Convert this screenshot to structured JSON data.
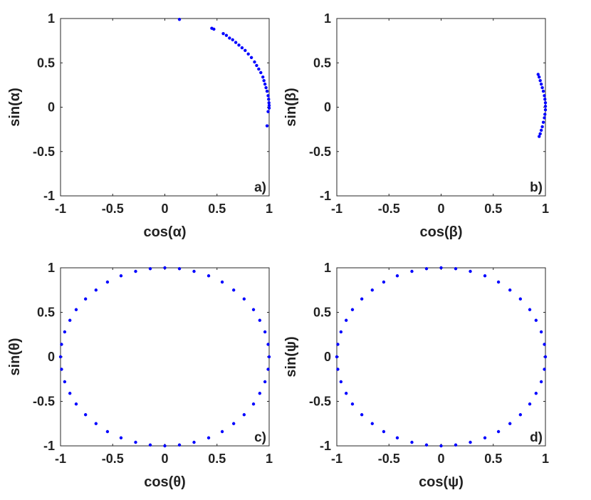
{
  "chart_data": [
    {
      "type": "scatter",
      "panel_label": "a)",
      "xlabel": "cos(α)",
      "ylabel": "sin(α)",
      "xlim": [
        -1,
        1
      ],
      "ylim": [
        -1,
        1
      ],
      "xticks": [
        "-1",
        "-0.5",
        "0",
        "0.5",
        "1"
      ],
      "yticks": [
        "-1",
        "-0.5",
        "0",
        "0.5",
        "1"
      ],
      "grid": false,
      "color": "#0000ff",
      "points": [
        [
          0.14,
          0.99
        ],
        [
          0.45,
          0.89
        ],
        [
          0.47,
          0.88
        ],
        [
          0.56,
          0.83
        ],
        [
          0.59,
          0.81
        ],
        [
          0.62,
          0.78
        ],
        [
          0.65,
          0.76
        ],
        [
          0.68,
          0.73
        ],
        [
          0.71,
          0.7
        ],
        [
          0.74,
          0.67
        ],
        [
          0.77,
          0.64
        ],
        [
          0.8,
          0.6
        ],
        [
          0.83,
          0.56
        ],
        [
          0.86,
          0.51
        ],
        [
          0.88,
          0.47
        ],
        [
          0.9,
          0.43
        ],
        [
          0.92,
          0.39
        ],
        [
          0.94,
          0.34
        ],
        [
          0.95,
          0.3
        ],
        [
          0.96,
          0.26
        ],
        [
          0.97,
          0.22
        ],
        [
          0.98,
          0.18
        ],
        [
          0.99,
          0.13
        ],
        [
          0.995,
          0.09
        ],
        [
          0.998,
          0.05
        ],
        [
          1.0,
          0.02
        ],
        [
          1.0,
          -0.01
        ],
        [
          0.99,
          -0.05
        ],
        [
          0.98,
          -0.21
        ]
      ]
    },
    {
      "type": "scatter",
      "panel_label": "b)",
      "xlabel": "cos(β)",
      "ylabel": "sin(β)",
      "xlim": [
        -1,
        1
      ],
      "ylim": [
        -1,
        1
      ],
      "xticks": [
        "-1",
        "-0.5",
        "0",
        "0.5",
        "1"
      ],
      "yticks": [
        "-1",
        "-0.5",
        "0",
        "0.5",
        "1"
      ],
      "grid": false,
      "color": "#0000ff",
      "points": [
        [
          0.93,
          0.37
        ],
        [
          0.94,
          0.34
        ],
        [
          0.95,
          0.3
        ],
        [
          0.96,
          0.26
        ],
        [
          0.97,
          0.22
        ],
        [
          0.98,
          0.18
        ],
        [
          0.99,
          0.13
        ],
        [
          0.995,
          0.09
        ],
        [
          1.0,
          0.05
        ],
        [
          1.0,
          0.01
        ],
        [
          1.0,
          -0.03
        ],
        [
          0.995,
          -0.08
        ],
        [
          0.99,
          -0.12
        ],
        [
          0.98,
          -0.17
        ],
        [
          0.97,
          -0.22
        ],
        [
          0.96,
          -0.26
        ],
        [
          0.95,
          -0.3
        ],
        [
          0.94,
          -0.33
        ]
      ]
    },
    {
      "type": "scatter",
      "panel_label": "c)",
      "xlabel": "cos(θ)",
      "ylabel": "sin(θ)",
      "xlim": [
        -1,
        1
      ],
      "ylim": [
        -1,
        1
      ],
      "xticks": [
        "-1",
        "-0.5",
        "0",
        "0.5",
        "1"
      ],
      "yticks": [
        "-1",
        "-0.5",
        "0",
        "0.5",
        "1"
      ],
      "grid": false,
      "color": "#0000ff",
      "points": [
        [
          1.0,
          0.0
        ],
        [
          0.99,
          0.14
        ],
        [
          0.96,
          0.28
        ],
        [
          0.91,
          0.41
        ],
        [
          0.85,
          0.53
        ],
        [
          0.76,
          0.65
        ],
        [
          0.66,
          0.75
        ],
        [
          0.55,
          0.84
        ],
        [
          0.42,
          0.91
        ],
        [
          0.28,
          0.96
        ],
        [
          0.14,
          0.99
        ],
        [
          0.0,
          1.0
        ],
        [
          -0.14,
          0.99
        ],
        [
          -0.28,
          0.96
        ],
        [
          -0.42,
          0.91
        ],
        [
          -0.55,
          0.84
        ],
        [
          -0.66,
          0.75
        ],
        [
          -0.76,
          0.65
        ],
        [
          -0.85,
          0.53
        ],
        [
          -0.91,
          0.41
        ],
        [
          -0.96,
          0.28
        ],
        [
          -0.99,
          0.14
        ],
        [
          -1.0,
          0.0
        ],
        [
          -0.99,
          -0.14
        ],
        [
          -0.96,
          -0.28
        ],
        [
          -0.91,
          -0.41
        ],
        [
          -0.85,
          -0.53
        ],
        [
          -0.76,
          -0.65
        ],
        [
          -0.66,
          -0.75
        ],
        [
          -0.55,
          -0.84
        ],
        [
          -0.42,
          -0.91
        ],
        [
          -0.28,
          -0.96
        ],
        [
          -0.14,
          -0.99
        ],
        [
          0.0,
          -1.0
        ],
        [
          0.14,
          -0.99
        ],
        [
          0.28,
          -0.96
        ],
        [
          0.42,
          -0.91
        ],
        [
          0.55,
          -0.84
        ],
        [
          0.66,
          -0.75
        ],
        [
          0.76,
          -0.65
        ],
        [
          0.85,
          -0.53
        ],
        [
          0.91,
          -0.41
        ],
        [
          0.96,
          -0.28
        ],
        [
          0.99,
          -0.14
        ]
      ]
    },
    {
      "type": "scatter",
      "panel_label": "d)",
      "xlabel": "cos(ψ)",
      "ylabel": "sin(ψ)",
      "xlim": [
        -1,
        1
      ],
      "ylim": [
        -1,
        1
      ],
      "xticks": [
        "-1",
        "-0.5",
        "0",
        "0.5",
        "1"
      ],
      "yticks": [
        "-1",
        "-0.5",
        "0",
        "0.5",
        "1"
      ],
      "grid": false,
      "color": "#0000ff",
      "points": [
        [
          1.0,
          0.0
        ],
        [
          0.99,
          0.14
        ],
        [
          0.96,
          0.28
        ],
        [
          0.91,
          0.41
        ],
        [
          0.85,
          0.53
        ],
        [
          0.76,
          0.65
        ],
        [
          0.66,
          0.75
        ],
        [
          0.55,
          0.84
        ],
        [
          0.42,
          0.91
        ],
        [
          0.28,
          0.96
        ],
        [
          0.14,
          0.99
        ],
        [
          0.0,
          1.0
        ],
        [
          -0.14,
          0.99
        ],
        [
          -0.28,
          0.96
        ],
        [
          -0.42,
          0.91
        ],
        [
          -0.55,
          0.84
        ],
        [
          -0.66,
          0.75
        ],
        [
          -0.76,
          0.65
        ],
        [
          -0.85,
          0.53
        ],
        [
          -0.91,
          0.41
        ],
        [
          -0.96,
          0.28
        ],
        [
          -0.99,
          0.14
        ],
        [
          -1.0,
          0.0
        ],
        [
          -0.99,
          -0.14
        ],
        [
          -0.96,
          -0.28
        ],
        [
          -0.91,
          -0.41
        ],
        [
          -0.85,
          -0.53
        ],
        [
          -0.76,
          -0.65
        ],
        [
          -0.66,
          -0.75
        ],
        [
          -0.55,
          -0.84
        ],
        [
          -0.42,
          -0.91
        ],
        [
          -0.28,
          -0.96
        ],
        [
          -0.14,
          -0.99
        ],
        [
          0.0,
          -1.0
        ],
        [
          0.14,
          -0.99
        ],
        [
          0.28,
          -0.96
        ],
        [
          0.42,
          -0.91
        ],
        [
          0.55,
          -0.84
        ],
        [
          0.66,
          -0.75
        ],
        [
          0.76,
          -0.65
        ],
        [
          0.85,
          -0.53
        ],
        [
          0.91,
          -0.41
        ],
        [
          0.96,
          -0.28
        ],
        [
          0.99,
          -0.14
        ]
      ]
    }
  ]
}
